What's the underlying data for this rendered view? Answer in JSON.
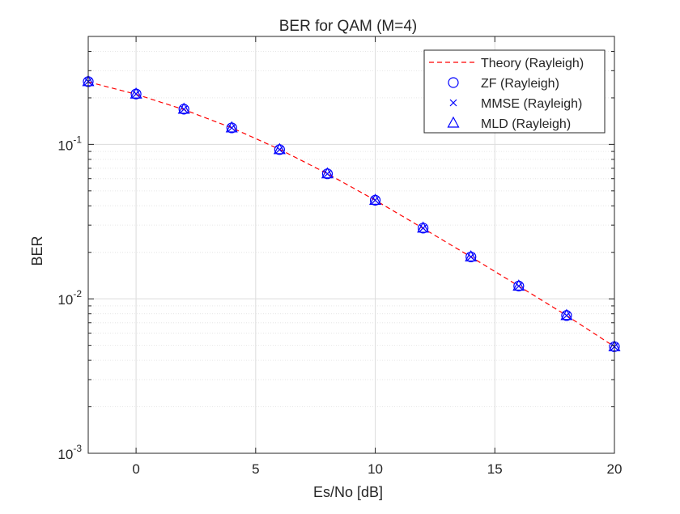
{
  "chart_data": {
    "type": "line",
    "title": "BER for QAM (M=4)",
    "xlabel": "Es/No [dB]",
    "ylabel": "BER",
    "xlim": [
      -2,
      20
    ],
    "ylim": [
      0.001,
      0.5
    ],
    "yscale": "log",
    "grid": true,
    "minor_grid": true,
    "legend_position": "top-right",
    "xticks": [
      0,
      5,
      10,
      15,
      20
    ],
    "yticks": [
      {
        "value": 0.001,
        "base": "10",
        "exp": "-3"
      },
      {
        "value": 0.01,
        "base": "10",
        "exp": "-2"
      },
      {
        "value": 0.1,
        "base": "10",
        "exp": "-1"
      }
    ],
    "x": [
      -2,
      0,
      2,
      4,
      6,
      8,
      10,
      12,
      14,
      16,
      18,
      20
    ],
    "series": [
      {
        "name": "Theory (Rayleigh)",
        "style": "dashed-line",
        "color": "#ff0000",
        "values": [
          0.254,
          0.211,
          0.168,
          0.128,
          0.0929,
          0.0646,
          0.0435,
          0.0286,
          0.0187,
          0.0121,
          0.0078,
          0.0049
        ]
      },
      {
        "name": "ZF (Rayleigh)",
        "style": "circle-marker",
        "color": "#0000ff",
        "values": [
          0.255,
          0.212,
          0.169,
          0.128,
          0.0925,
          0.0645,
          0.0435,
          0.0287,
          0.0187,
          0.0121,
          0.0078,
          0.0049
        ]
      },
      {
        "name": "MMSE (Rayleigh)",
        "style": "x-marker",
        "color": "#0000ff",
        "values": [
          0.255,
          0.212,
          0.169,
          0.128,
          0.0925,
          0.0645,
          0.0435,
          0.0287,
          0.0187,
          0.0121,
          0.0078,
          0.0049
        ]
      },
      {
        "name": "MLD (Rayleigh)",
        "style": "triangle-marker",
        "color": "#0000ff",
        "values": [
          0.255,
          0.212,
          0.169,
          0.128,
          0.0925,
          0.0645,
          0.0435,
          0.0287,
          0.0187,
          0.0121,
          0.0078,
          0.0049
        ]
      }
    ]
  }
}
